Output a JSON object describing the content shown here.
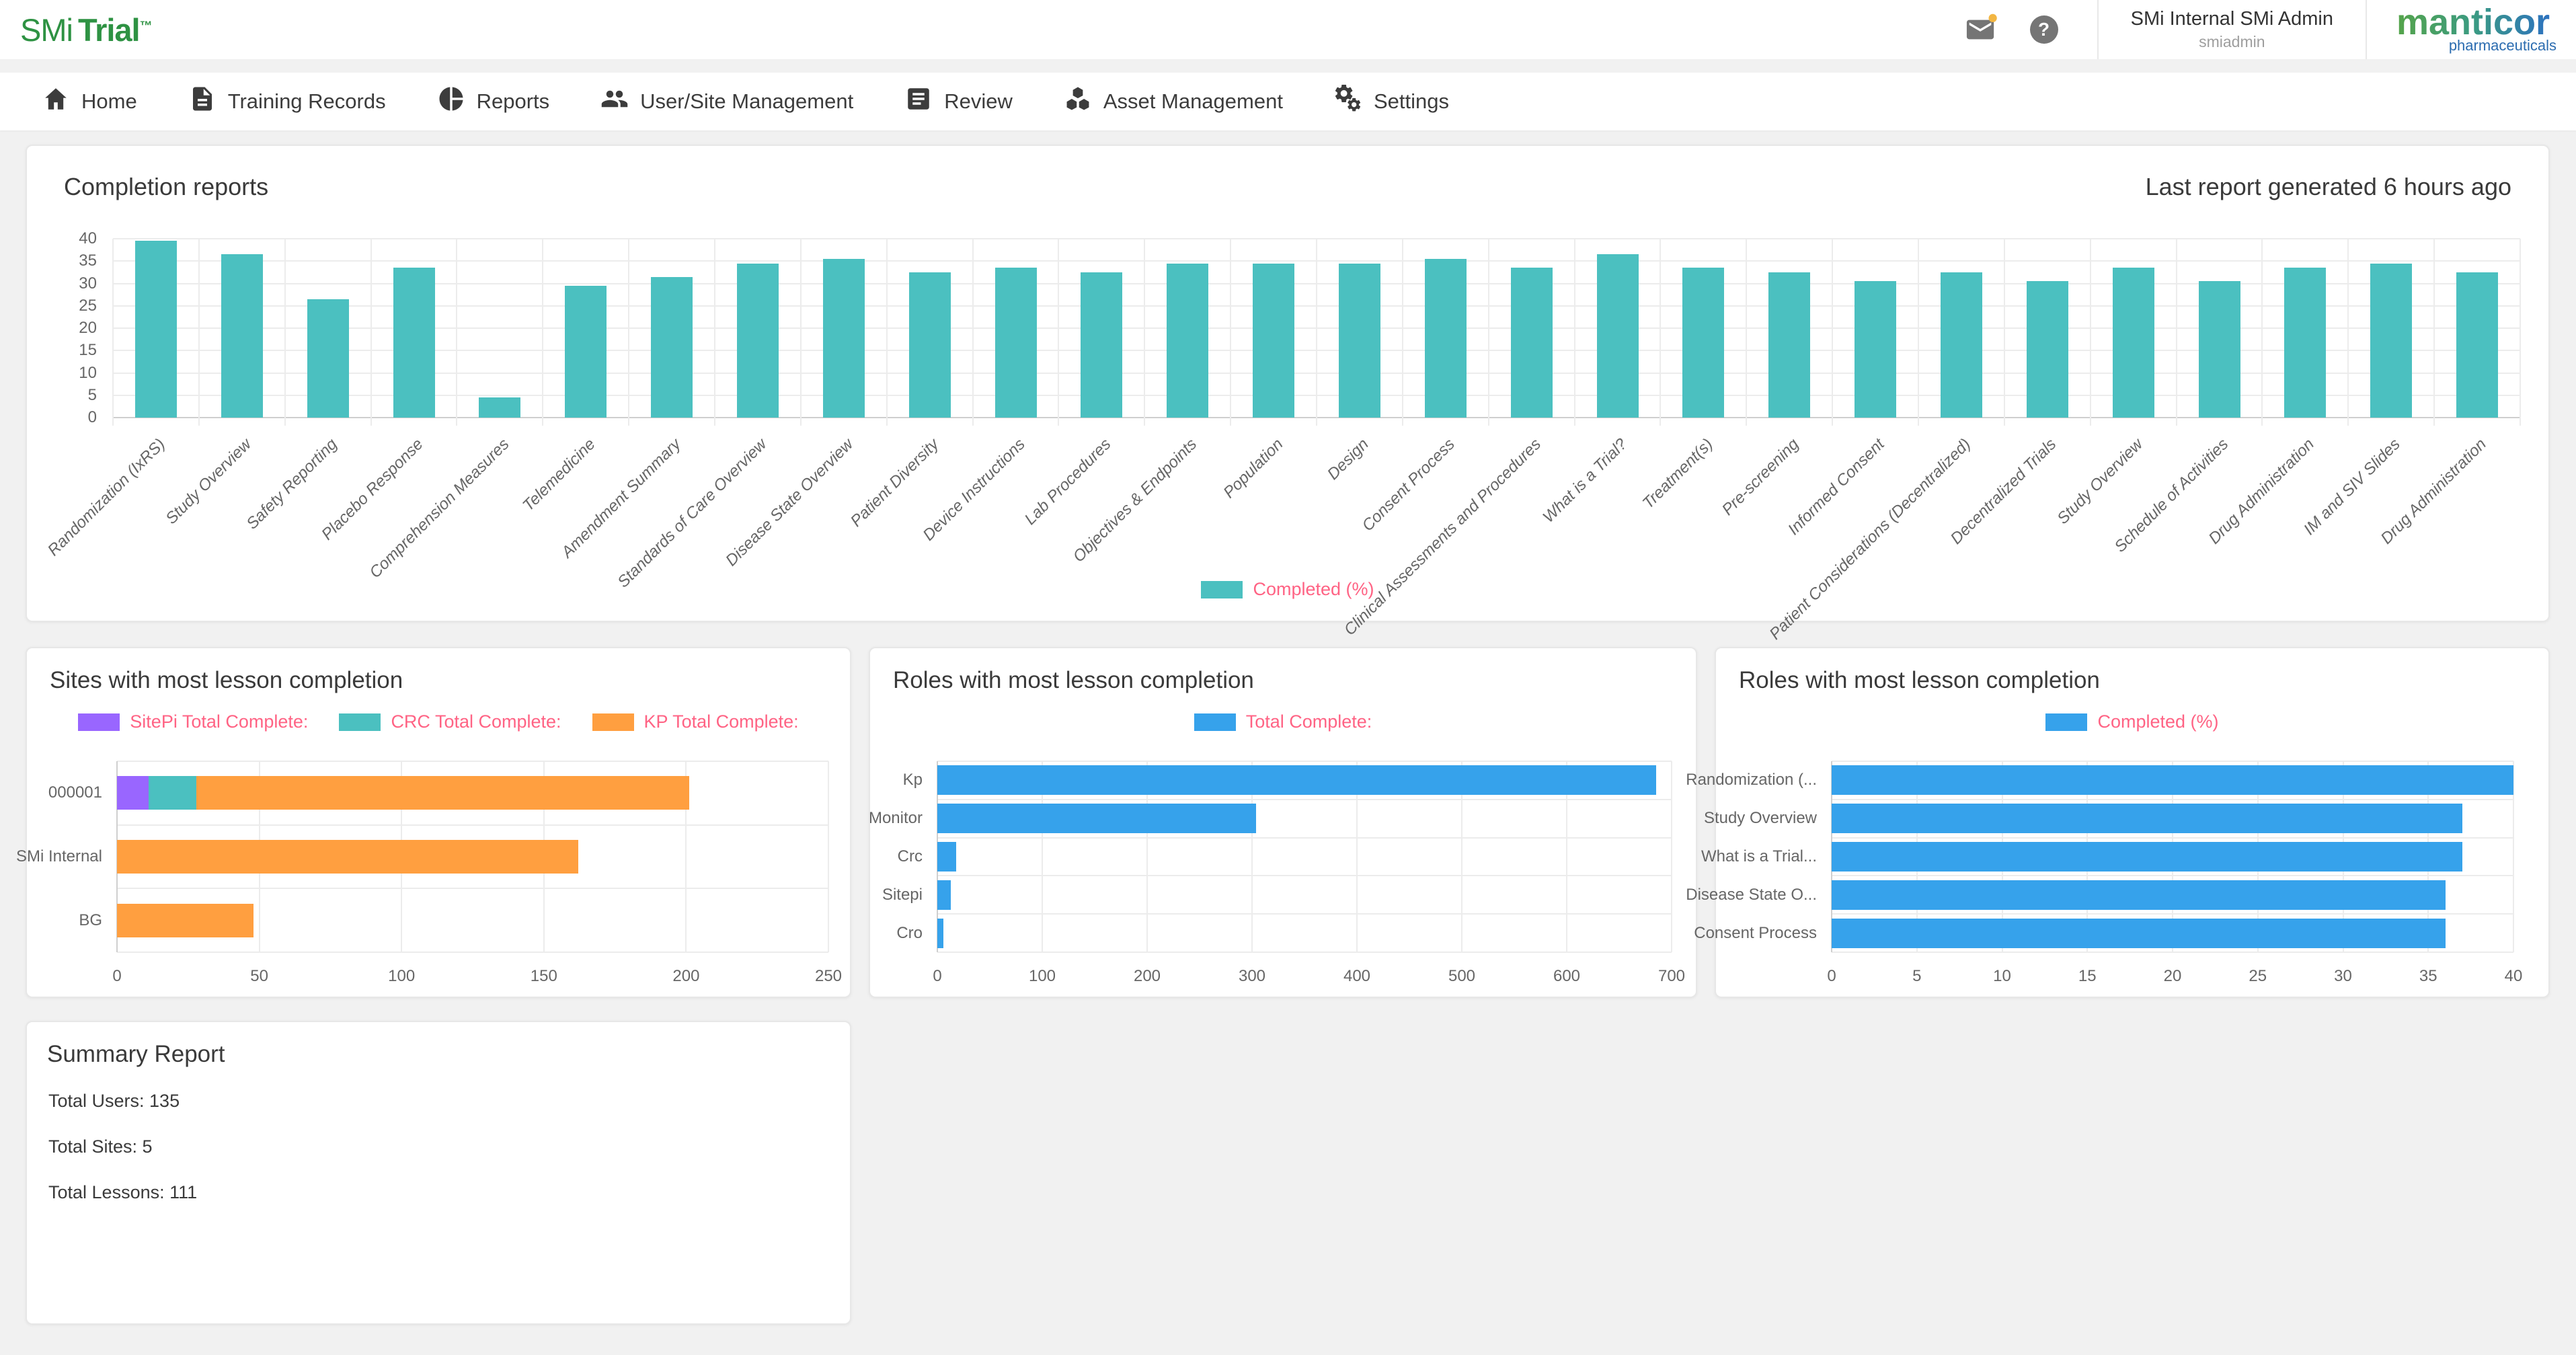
{
  "header": {
    "logo": {
      "smi": "SMi",
      "trial": "Trial",
      "tm": "™"
    },
    "user": {
      "name": "SMi Internal SMi Admin",
      "username": "smiadmin"
    },
    "help_glyph": "?",
    "brand": {
      "name": "manticor",
      "tagline": "pharmaceuticals"
    }
  },
  "nav": {
    "items": [
      {
        "label": "Home",
        "icon": "home-icon"
      },
      {
        "label": "Training Records",
        "icon": "document-icon"
      },
      {
        "label": "Reports",
        "icon": "pie-chart-icon"
      },
      {
        "label": "User/Site Management",
        "icon": "people-icon"
      },
      {
        "label": "Review",
        "icon": "review-document-icon"
      },
      {
        "label": "Asset Management",
        "icon": "cubes-icon"
      },
      {
        "label": "Settings",
        "icon": "gears-icon"
      }
    ]
  },
  "completion_card": {
    "title": "Completion reports",
    "status": "Last report generated 6 hours ago"
  },
  "summary_card": {
    "title": "Summary Report",
    "lines": [
      "Total Users: 135",
      "Total Sites: 5",
      "Total Lessons: 111"
    ]
  },
  "colors": {
    "teal": "#4BC0C0",
    "blue": "#36A2EB",
    "purple": "#9966FF",
    "orange": "#FF9F40",
    "legend_text": "#FF6384",
    "grid": "#ececec",
    "tick_text": "#666666",
    "brand_green": "#2E9243"
  },
  "chart_data": [
    {
      "id": "completion",
      "type": "bar",
      "title": "Completion reports",
      "legend": [
        {
          "label": "Completed (%)",
          "color": "#4BC0C0"
        }
      ],
      "categories": [
        "Randomization (IxRS)",
        "Study Overview",
        "Safety Reporting",
        "Placebo Response",
        "Comprehension Measures",
        "Telemedicine",
        "Amendment Summary",
        "Standards of Care Overview",
        "Disease State Overview",
        "Patient Diversity",
        "Device Instructions",
        "Lab Procedures",
        "Objectives & Endpoints",
        "Population",
        "Design",
        "Consent Process",
        "Clinical Assessments and Procedures",
        "What is a Trial?",
        "Treatment(s)",
        "Pre-screening",
        "Informed Consent",
        "Patient Considerations (Decentralized)",
        "Decentralized Trials",
        "Study Overview",
        "Schedule of Activities",
        "Drug Administration",
        "IM and SIV Slides",
        "Drug Administration"
      ],
      "values": [
        39.5,
        36.5,
        26.5,
        33.5,
        4.5,
        29.5,
        31.5,
        34.5,
        35.5,
        32.5,
        33.5,
        32.5,
        34.5,
        34.5,
        34.5,
        35.5,
        33.5,
        36.5,
        33.5,
        32.5,
        30.5,
        32.5,
        30.5,
        33.5,
        30.5,
        33.5,
        34.5,
        32.5
      ],
      "ylim": [
        0,
        40
      ],
      "ytick_step": 5,
      "grid": true,
      "legend_position": "bottom"
    },
    {
      "id": "sites",
      "type": "bar-horizontal-stacked",
      "title": "Sites with most lesson completion",
      "categories": [
        "000001",
        "SMi Internal",
        "BG"
      ],
      "series": [
        {
          "name": "SitePi Total Complete:",
          "color": "#9966FF",
          "values": [
            11,
            0,
            0
          ]
        },
        {
          "name": "CRC Total Complete:",
          "color": "#4BC0C0",
          "values": [
            17,
            0,
            0
          ]
        },
        {
          "name": "KP Total Complete:",
          "color": "#FF9F40",
          "values": [
            173,
            162,
            48
          ]
        }
      ],
      "xlim": [
        0,
        250
      ],
      "xticks": [
        0,
        50,
        100,
        150,
        200,
        250
      ],
      "grid": true,
      "legend_position": "top"
    },
    {
      "id": "roles",
      "type": "bar-horizontal",
      "title": "Roles with most lesson completion",
      "legend": [
        {
          "label": "Total Complete:",
          "color": "#36A2EB"
        }
      ],
      "categories": [
        "Kp",
        "Monitor",
        "Crc",
        "Sitepi",
        "Cro"
      ],
      "values": [
        685,
        304,
        18,
        13,
        6
      ],
      "xlim": [
        0,
        700
      ],
      "xticks": [
        0,
        100,
        200,
        300,
        400,
        500,
        600,
        700
      ],
      "grid": true,
      "legend_position": "top"
    },
    {
      "id": "lessons",
      "type": "bar-horizontal",
      "title": "Roles with most lesson completion",
      "legend": [
        {
          "label": "Completed (%)",
          "color": "#36A2EB"
        }
      ],
      "categories": [
        "Randomization (...",
        "Study Overview",
        "What is a Trial...",
        "Disease State O...",
        "Consent Process"
      ],
      "values": [
        40,
        37,
        37,
        36,
        36
      ],
      "xlim": [
        0,
        40
      ],
      "xticks": [
        0,
        5,
        10,
        15,
        20,
        25,
        30,
        35,
        40
      ],
      "grid": true,
      "legend_position": "top"
    }
  ]
}
